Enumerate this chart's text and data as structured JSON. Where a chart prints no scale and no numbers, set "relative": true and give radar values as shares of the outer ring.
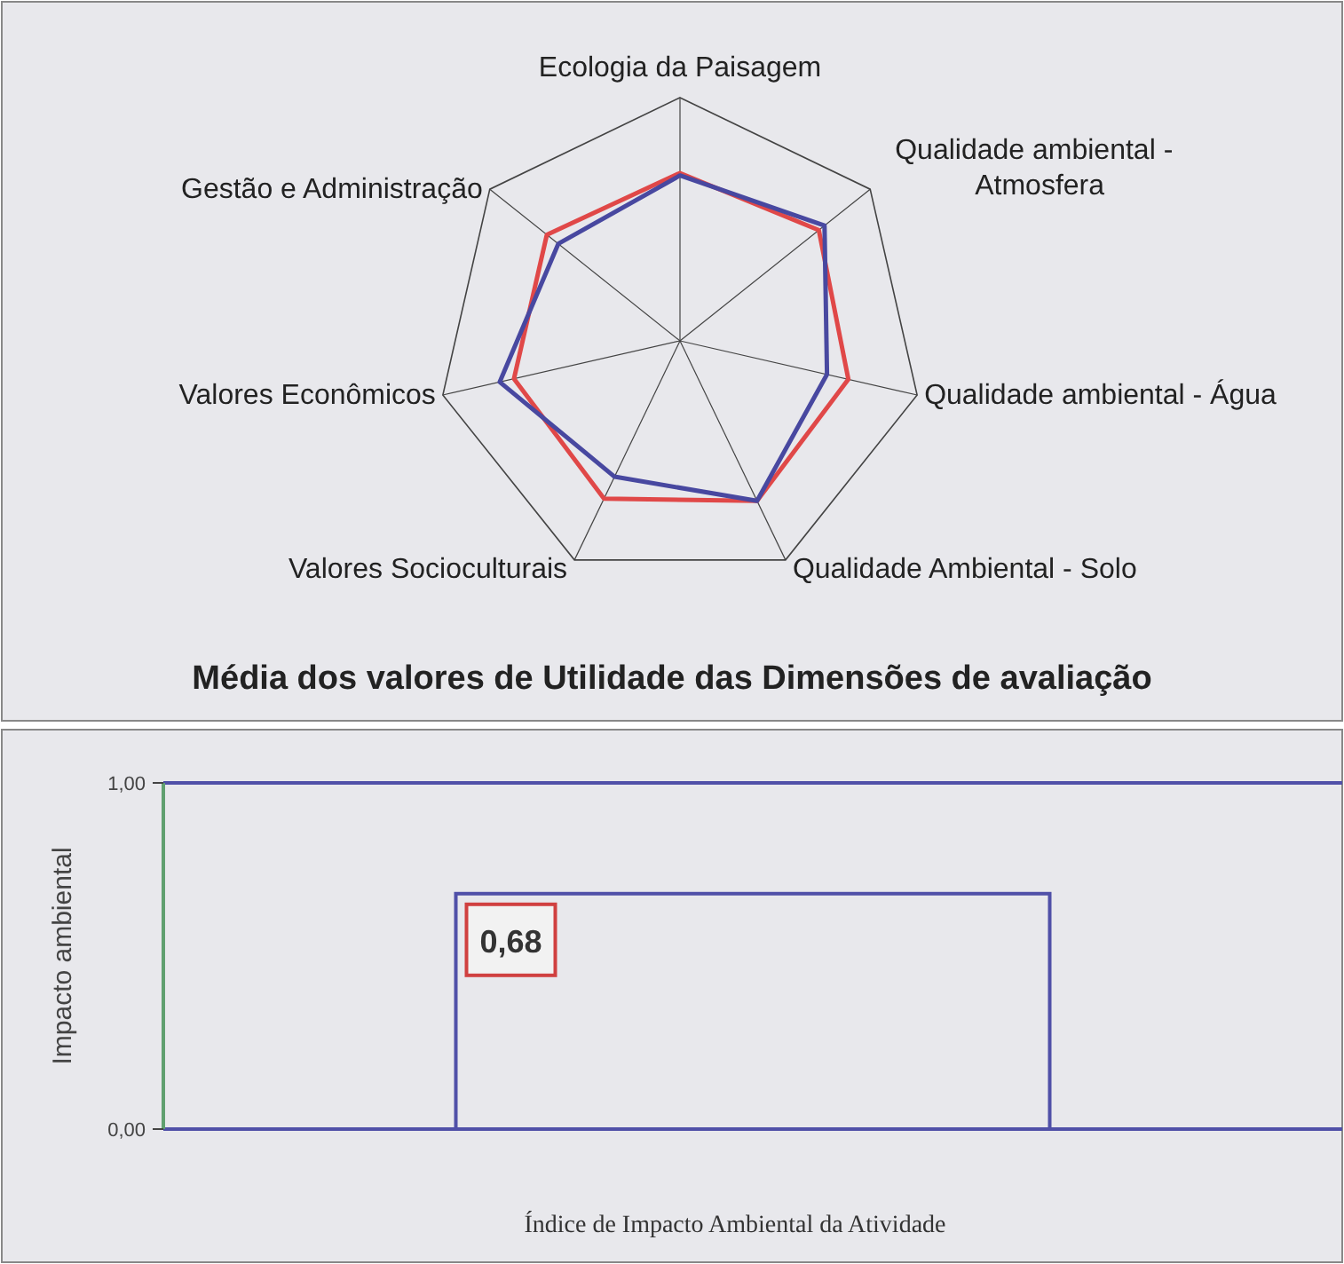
{
  "chart_data": [
    {
      "type": "radar",
      "title": "Média dos valores de Utilidade das Dimensões de avaliação",
      "relative": true,
      "legend": false,
      "categories": [
        "Ecologia da Paisagem",
        "Qualidade ambiental - Atmosfera",
        "Qualidade ambiental - Água",
        "Qualidade Ambiental - Solo",
        "Valores Socioculturais",
        "Valores Econômicos",
        "Gestão e Administração"
      ],
      "series": [
        {
          "color": "#e04848",
          "values": [
            0.69,
            0.73,
            0.71,
            0.73,
            0.72,
            0.7,
            0.7
          ]
        },
        {
          "color": "#4848a0",
          "values": [
            0.68,
            0.76,
            0.62,
            0.73,
            0.62,
            0.76,
            0.64
          ]
        }
      ]
    },
    {
      "type": "bar",
      "categories": [
        null
      ],
      "values": [
        0.68
      ],
      "color": "#5050a8",
      "value_labels": [
        "0,68"
      ],
      "ylabel": "Impacto ambiental",
      "xlabel": "Índice de Impacto Ambiental da Atividade",
      "ylim": [
        0,
        1
      ],
      "yticks": [
        {
          "value": 0,
          "label": "0,00"
        },
        {
          "value": 1,
          "label": "1,00"
        }
      ]
    }
  ]
}
